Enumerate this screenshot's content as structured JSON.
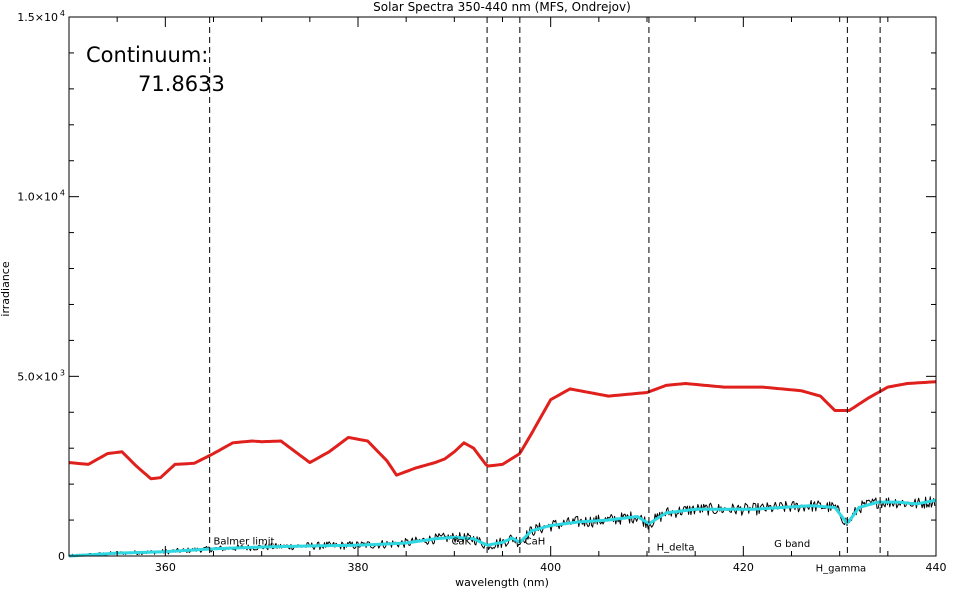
{
  "chart_data": {
    "type": "line",
    "title": "Solar Spectra 350-440 nm (MFS, Ondrejov)",
    "xlabel": "wavelength (nm)",
    "ylabel": "irradiance",
    "xlim": [
      350,
      440
    ],
    "ylim": [
      0,
      15000
    ],
    "grid": false,
    "x_ticks": [
      {
        "value": 360,
        "label": "360"
      },
      {
        "value": 380,
        "label": "380"
      },
      {
        "value": 400,
        "label": "400"
      },
      {
        "value": 420,
        "label": "420"
      },
      {
        "value": 440,
        "label": "440"
      }
    ],
    "y_ticks": [
      {
        "value": 0,
        "label": "0"
      },
      {
        "value": 5000,
        "label": "5.0×10",
        "exp": "3"
      },
      {
        "value": 10000,
        "label": "1.0×10",
        "exp": "4"
      },
      {
        "value": 15000,
        "label": "1.5×10",
        "exp": "4"
      }
    ],
    "annotations": [
      {
        "text": "Continuum:",
        "role": "heading"
      },
      {
        "text": "71.8633",
        "role": "value"
      }
    ],
    "vlines": [
      {
        "x": 364.6,
        "label": "Balmer  limit",
        "label_x": 365,
        "label_y": 320
      },
      {
        "x": 393.4,
        "label": "CaK",
        "label_x": 389.7,
        "label_y": 320
      },
      {
        "x": 396.8,
        "label": "CaH",
        "label_x": 397.3,
        "label_y": 320
      },
      {
        "x": 410.2,
        "label": "H_delta",
        "label_x": 411,
        "label_y": 160
      },
      {
        "x": 430.8,
        "label": "H_gamma",
        "label_x": 427.5,
        "label_y": -430
      },
      {
        "x": 434.2,
        "label": null
      },
      {
        "x": 423.0,
        "label": "G band",
        "label_x": 423.2,
        "label_y": 250,
        "no_line": true
      }
    ],
    "series": [
      {
        "role": "smooth-continuum",
        "color": "#e0201c",
        "x": [
          350,
          352,
          354,
          355.5,
          357,
          358.5,
          359.5,
          361,
          363,
          365,
          367,
          369,
          370,
          372,
          374,
          375,
          377,
          379,
          381,
          383,
          384,
          386,
          388,
          389,
          390,
          391,
          392,
          393.4,
          395,
          396.8,
          398,
          400,
          402,
          404,
          406,
          408,
          410,
          412,
          414,
          416,
          418,
          420,
          422,
          424,
          426,
          428,
          429.5,
          431,
          433,
          435,
          437,
          440
        ],
        "y": [
          2600,
          2550,
          2850,
          2900,
          2500,
          2150,
          2180,
          2550,
          2580,
          2850,
          3150,
          3200,
          3180,
          3200,
          2800,
          2600,
          2900,
          3300,
          3200,
          2650,
          2250,
          2450,
          2600,
          2700,
          2900,
          3150,
          3000,
          2500,
          2550,
          2850,
          3400,
          4350,
          4650,
          4550,
          4450,
          4500,
          4550,
          4750,
          4800,
          4750,
          4700,
          4700,
          4700,
          4650,
          4600,
          4450,
          4050,
          4050,
          4400,
          4700,
          4800,
          4850
        ]
      },
      {
        "role": "smoothed-spectrum",
        "color": "#2ed8e2",
        "x": [
          350,
          355,
          360,
          365,
          370,
          375,
          380,
          385,
          388,
          390,
          392,
          393.4,
          395,
          396,
          396.8,
          398,
          400,
          403,
          406,
          409,
          410.2,
          412,
          415,
          418,
          421,
          424,
          427,
          429.5,
          430.8,
          432,
          434,
          436,
          438,
          440
        ],
        "y": [
          0,
          80,
          120,
          200,
          250,
          280,
          300,
          360,
          480,
          520,
          480,
          300,
          380,
          500,
          380,
          700,
          850,
          950,
          1000,
          1100,
          900,
          1200,
          1300,
          1300,
          1300,
          1350,
          1400,
          1350,
          900,
          1350,
          1500,
          1500,
          1450,
          1550
        ]
      },
      {
        "role": "observed-spectrum",
        "color": "#000000",
        "x": [
          350,
          355,
          360,
          365,
          370,
          375,
          380,
          385,
          388,
          390,
          392,
          393.4,
          395,
          396,
          396.8,
          398,
          400,
          403,
          406,
          409,
          410.2,
          412,
          415,
          418,
          421,
          424,
          427,
          429.5,
          430.8,
          432,
          434,
          436,
          438,
          440
        ],
        "y": [
          0,
          80,
          120,
          200,
          250,
          280,
          300,
          360,
          480,
          520,
          480,
          300,
          380,
          500,
          380,
          700,
          850,
          950,
          1000,
          1100,
          900,
          1200,
          1300,
          1300,
          1300,
          1350,
          1400,
          1350,
          900,
          1350,
          1500,
          1500,
          1450,
          1550
        ],
        "noise": 170
      }
    ]
  }
}
